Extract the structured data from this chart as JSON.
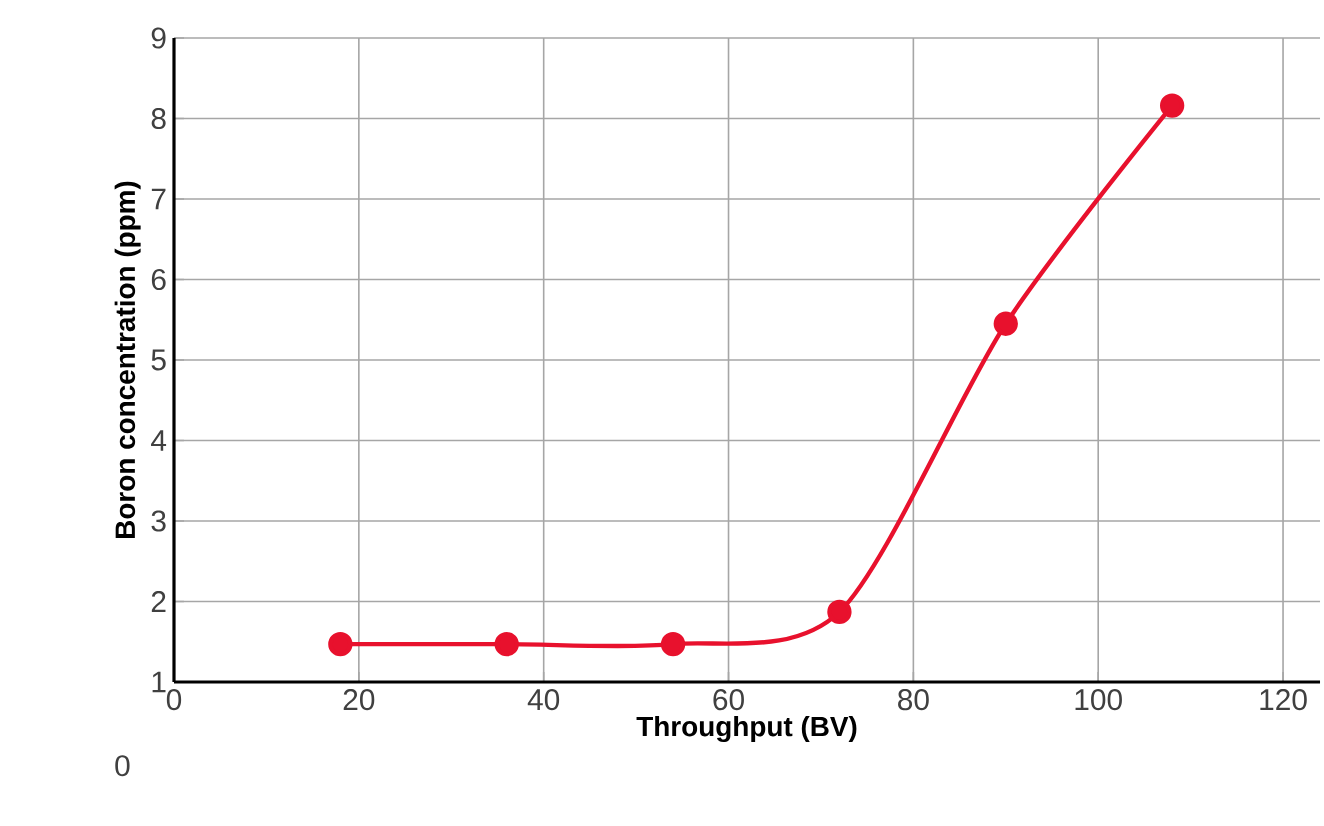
{
  "chart_data": {
    "type": "line",
    "xlabel": "Throughput (BV)",
    "ylabel": "Boron concentration (ppm)",
    "x": [
      18,
      36,
      54,
      72,
      90,
      108
    ],
    "series": [
      {
        "color": "#e8112d",
        "values": [
          1.47,
          1.47,
          1.47,
          1.87,
          5.45,
          8.16
        ]
      }
    ],
    "xlim": [
      0,
      124
    ],
    "xticks": [
      0,
      20,
      40,
      60,
      80,
      100,
      120
    ],
    "ylim": [
      1,
      9
    ],
    "yticks": [
      1,
      2,
      3,
      4,
      5,
      6,
      7,
      8,
      9
    ],
    "grid": true,
    "marker": "circle",
    "line_style": "solid",
    "annotations": [
      "0"
    ]
  }
}
